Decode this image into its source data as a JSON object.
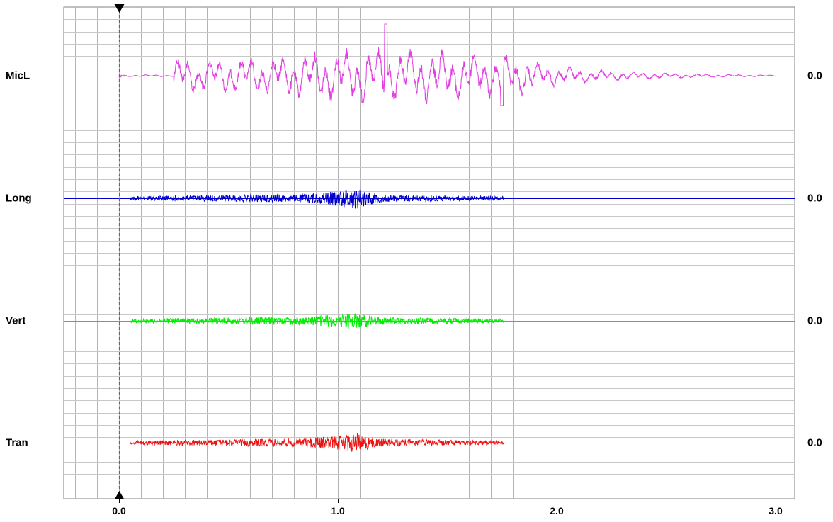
{
  "chart_data": {
    "type": "line",
    "title": "",
    "xlabel": "",
    "ylabel": "",
    "xlim": [
      -0.25,
      3.1
    ],
    "x_ticks": [
      "0.0",
      "1.0",
      "2.0",
      "3.0"
    ],
    "x_tick_values": [
      0.0,
      1.0,
      2.0,
      3.0
    ],
    "grid": true,
    "marker_x": 0.0,
    "channels": [
      {
        "name": "MicL",
        "color": "#e040e0",
        "zero_label": "0.0",
        "kind": "mic",
        "active_range": [
          0.0,
          3.0
        ],
        "peak_x": 1.22,
        "peak_amplitude": 73
      },
      {
        "name": "Long",
        "color": "#0000cc",
        "zero_label": "0.0",
        "kind": "noise",
        "active_range": [
          0.05,
          1.76
        ],
        "peak_x": 1.07,
        "peak_amplitude": 16
      },
      {
        "name": "Vert",
        "color": "#00ee00",
        "zero_label": "0.0",
        "kind": "noise",
        "active_range": [
          0.05,
          1.76
        ],
        "peak_x": 1.07,
        "peak_amplitude": 10
      },
      {
        "name": "Tran",
        "color": "#ee1111",
        "zero_label": "0.0",
        "kind": "noise",
        "active_range": [
          0.05,
          1.76
        ],
        "peak_x": 1.07,
        "peak_amplitude": 14
      }
    ]
  }
}
